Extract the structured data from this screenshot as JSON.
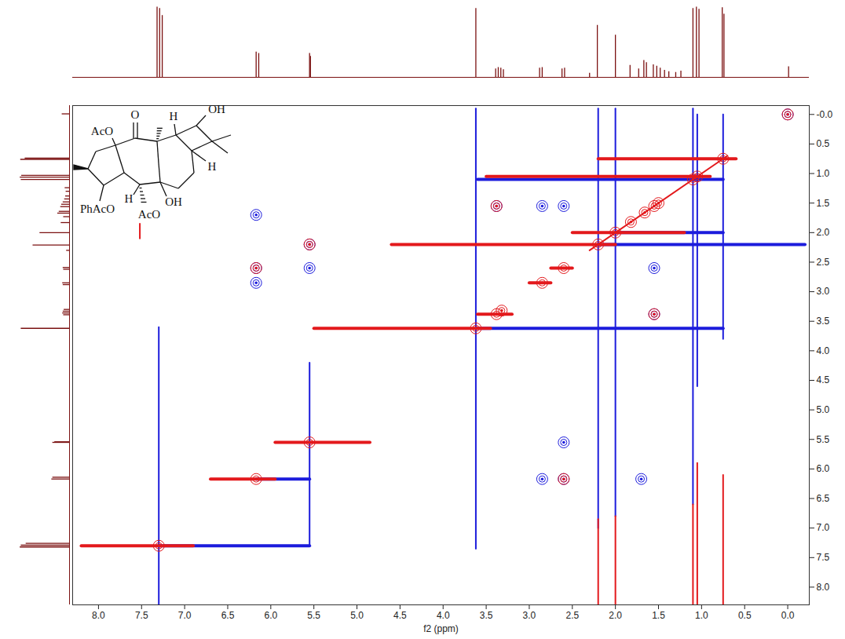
{
  "chart_data": {
    "type": "nmr_2d",
    "x_label": "f2 (ppm)",
    "xlim": [
      8.3,
      -0.25
    ],
    "xticks": [
      {
        "value": 8,
        "label": "8.0"
      },
      7.5,
      {
        "value": 7,
        "label": "7.0"
      },
      6.5,
      {
        "value": 6,
        "label": "6.0"
      },
      5.5,
      {
        "value": 5,
        "label": "5.0"
      },
      4.5,
      {
        "value": 4,
        "label": "4.0"
      },
      3.5,
      {
        "value": 3,
        "label": "3.0"
      },
      2.5,
      {
        "value": 2,
        "label": "2.0"
      },
      1.5,
      {
        "value": 1,
        "label": "1.0"
      },
      0.5,
      {
        "value": 0,
        "label": "0.0"
      }
    ],
    "ylim": [
      -0.15,
      8.3
    ],
    "yticks": [
      {
        "value": 0,
        "label": "-0.0"
      },
      0.5,
      {
        "value": 1,
        "label": "1.0"
      },
      1.5,
      {
        "value": 2,
        "label": "2.0"
      },
      2.5,
      {
        "value": 3,
        "label": "3.0"
      },
      3.5,
      {
        "value": 4,
        "label": "4.0"
      },
      4.5,
      {
        "value": 5,
        "label": "5.0"
      },
      5.5,
      {
        "value": 6,
        "label": "6.0"
      },
      6.5,
      {
        "value": 7,
        "label": "7.0"
      },
      7.5,
      {
        "value": 8,
        "label": "8.0"
      }
    ],
    "contours": [
      {
        "color": "#1c1cdc",
        "peaks": [
          [
            0.0,
            0.0
          ],
          [
            6.17,
            1.7
          ],
          [
            6.17,
            2.6
          ],
          [
            6.17,
            2.85
          ],
          [
            5.55,
            2.2
          ],
          [
            5.55,
            2.6
          ],
          [
            2.85,
            6.17
          ],
          [
            2.6,
            6.17
          ],
          [
            1.7,
            6.17
          ],
          [
            2.6,
            5.55
          ],
          [
            3.38,
            1.55
          ],
          [
            1.55,
            3.38
          ],
          [
            2.6,
            1.55
          ],
          [
            2.85,
            1.55
          ],
          [
            1.55,
            2.6
          ]
        ],
        "streaks": [
          [
            7.3,
            7.3,
            5.55,
            7.3
          ],
          [
            6.17,
            6.17,
            5.55,
            6.17
          ],
          [
            3.62,
            3.62,
            0.75,
            3.62
          ],
          [
            2.2,
            2.2,
            -0.2,
            2.2
          ],
          [
            2.0,
            2.0,
            0.75,
            2.0
          ],
          [
            3.6,
            1.1,
            0.75,
            1.1
          ],
          [
            7.3,
            3.6,
            7.3,
            8.3
          ],
          [
            5.55,
            4.2,
            5.55,
            7.3
          ],
          [
            3.62,
            -0.1,
            3.62,
            7.35
          ],
          [
            2.2,
            -0.1,
            2.2,
            7.0
          ],
          [
            2.0,
            -0.1,
            2.0,
            6.8
          ],
          [
            1.1,
            -0.1,
            1.1,
            6.6
          ],
          [
            1.05,
            0.0,
            1.05,
            4.6
          ],
          [
            0.75,
            0.0,
            0.75,
            3.8
          ]
        ]
      },
      {
        "color": "#e3191c",
        "peaks": [
          [
            7.3,
            7.3
          ],
          [
            6.17,
            6.17
          ],
          [
            5.55,
            5.55
          ],
          [
            3.62,
            3.62
          ],
          [
            3.38,
            3.38
          ],
          [
            3.32,
            3.32
          ],
          [
            2.85,
            2.85
          ],
          [
            2.6,
            2.6
          ],
          [
            2.2,
            2.2
          ],
          [
            2.0,
            2.0
          ],
          [
            1.82,
            1.82
          ],
          [
            1.66,
            1.66
          ],
          [
            1.55,
            1.55
          ],
          [
            1.5,
            1.5
          ],
          [
            1.1,
            1.1
          ],
          [
            1.05,
            1.05
          ],
          [
            0.75,
            0.75
          ],
          [
            0.0,
            0.0
          ],
          [
            6.17,
            2.6
          ],
          [
            2.6,
            6.17
          ],
          [
            5.55,
            2.2
          ],
          [
            3.38,
            1.55
          ],
          [
            1.55,
            3.38
          ]
        ],
        "streaks": [
          [
            8.2,
            7.3,
            6.9,
            7.3
          ],
          [
            6.7,
            6.17,
            5.95,
            6.17
          ],
          [
            5.95,
            5.55,
            4.85,
            5.55
          ],
          [
            5.5,
            3.62,
            3.45,
            3.62
          ],
          [
            3.6,
            3.38,
            3.2,
            3.38
          ],
          [
            3.0,
            2.85,
            2.75,
            2.85
          ],
          [
            2.75,
            2.6,
            2.5,
            2.6
          ],
          [
            4.6,
            2.2,
            2.0,
            2.2
          ],
          [
            2.5,
            2.0,
            1.2,
            2.0
          ],
          [
            3.5,
            1.05,
            0.9,
            1.05
          ],
          [
            2.2,
            0.75,
            0.6,
            0.75
          ],
          [
            2.3,
            2.3,
            0.7,
            0.7
          ],
          [
            2.2,
            6.85,
            2.2,
            8.3
          ],
          [
            2.0,
            6.8,
            2.0,
            8.3
          ],
          [
            1.1,
            6.6,
            1.1,
            8.3
          ],
          [
            1.05,
            5.9,
            1.05,
            8.3
          ],
          [
            0.75,
            6.1,
            0.75,
            8.3
          ],
          [
            7.52,
            1.85,
            7.52,
            2.1
          ]
        ]
      }
    ],
    "projection": {
      "color": "#7b1111",
      "peaks": [
        [
          7.32,
          1.0
        ],
        [
          7.29,
          0.98
        ],
        [
          7.26,
          0.88
        ],
        [
          6.17,
          0.36
        ],
        [
          6.14,
          0.34
        ],
        [
          5.55,
          0.34
        ],
        [
          5.54,
          0.3
        ],
        [
          3.62,
          0.98
        ],
        [
          3.39,
          0.12
        ],
        [
          3.36,
          0.14
        ],
        [
          3.33,
          0.13
        ],
        [
          3.3,
          0.11
        ],
        [
          2.88,
          0.13
        ],
        [
          2.85,
          0.14
        ],
        [
          2.62,
          0.12
        ],
        [
          2.59,
          0.13
        ],
        [
          2.3,
          0.06
        ],
        [
          2.21,
          0.74
        ],
        [
          2.0,
          0.6
        ],
        [
          1.83,
          0.17
        ],
        [
          1.73,
          0.12
        ],
        [
          1.67,
          0.24
        ],
        [
          1.64,
          0.21
        ],
        [
          1.56,
          0.18
        ],
        [
          1.52,
          0.16
        ],
        [
          1.48,
          0.13
        ],
        [
          1.43,
          0.1
        ],
        [
          1.38,
          0.08
        ],
        [
          1.3,
          0.07
        ],
        [
          1.24,
          0.09
        ],
        [
          1.1,
          0.98
        ],
        [
          1.06,
          1.0
        ],
        [
          1.03,
          0.97
        ],
        [
          0.76,
          0.99
        ],
        [
          0.74,
          0.9
        ],
        [
          -0.01,
          0.15
        ]
      ]
    },
    "structure": {
      "labels": [
        "O",
        "AcO",
        "H",
        "OH",
        "H",
        "PhAcO",
        "H",
        "AcO",
        "OH"
      ]
    }
  }
}
